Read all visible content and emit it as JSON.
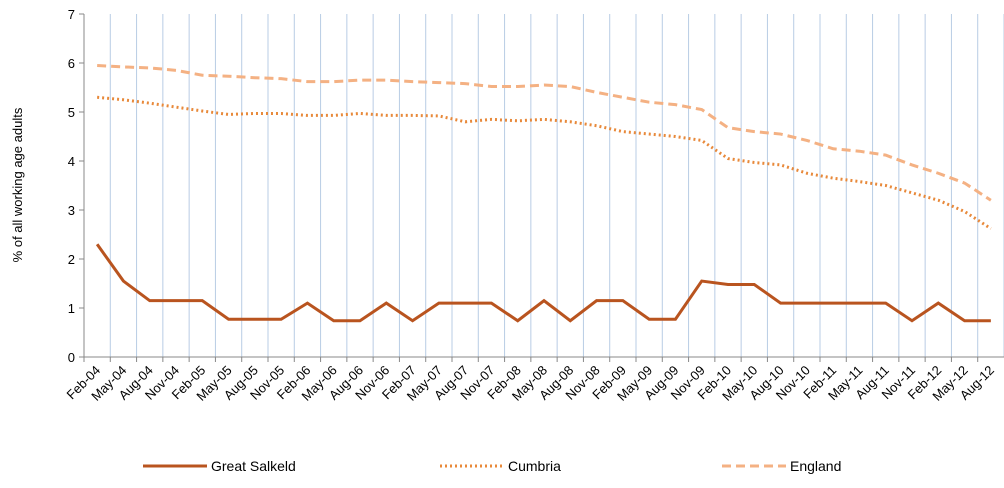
{
  "chart_data": {
    "type": "line",
    "y_label": "% of all working age adults",
    "categories": [
      "Feb-04",
      "May-04",
      "Aug-04",
      "Nov-04",
      "Feb-05",
      "May-05",
      "Aug-05",
      "Nov-05",
      "Feb-06",
      "May-06",
      "Aug-06",
      "Nov-06",
      "Feb-07",
      "May-07",
      "Aug-07",
      "Nov-07",
      "Feb-08",
      "May-08",
      "Aug-08",
      "Nov-08",
      "Feb-09",
      "May-09",
      "Aug-09",
      "Nov-09",
      "Feb-10",
      "May-10",
      "Aug-10",
      "Nov-10",
      "Feb-11",
      "May-11",
      "Aug-11",
      "Nov-11",
      "Feb-12",
      "May-12",
      "Aug-12"
    ],
    "series": [
      {
        "name": "Great Salkeld",
        "color": "#b9541f",
        "dash": "solid",
        "values": [
          2.3,
          1.55,
          1.15,
          1.15,
          1.15,
          0.77,
          0.77,
          0.77,
          1.1,
          0.74,
          0.74,
          1.1,
          0.74,
          1.1,
          1.1,
          1.1,
          0.74,
          1.15,
          0.74,
          1.15,
          1.15,
          0.77,
          0.77,
          1.55,
          1.48,
          1.48,
          1.1,
          1.1,
          1.1,
          1.1,
          1.1,
          0.74,
          1.1,
          0.74,
          0.74
        ]
      },
      {
        "name": "Cumbria",
        "color": "#e8893a",
        "dash": "dotted",
        "values": [
          5.3,
          5.25,
          5.18,
          5.1,
          5.02,
          4.95,
          4.97,
          4.97,
          4.93,
          4.93,
          4.97,
          4.93,
          4.93,
          4.92,
          4.8,
          4.85,
          4.82,
          4.85,
          4.8,
          4.72,
          4.6,
          4.55,
          4.5,
          4.42,
          4.05,
          3.97,
          3.92,
          3.75,
          3.65,
          3.58,
          3.5,
          3.35,
          3.2,
          2.97,
          2.62
        ]
      },
      {
        "name": "England",
        "color": "#f4b183",
        "dash": "dashed",
        "values": [
          5.95,
          5.92,
          5.9,
          5.85,
          5.75,
          5.73,
          5.7,
          5.68,
          5.62,
          5.62,
          5.65,
          5.65,
          5.62,
          5.6,
          5.58,
          5.52,
          5.52,
          5.55,
          5.52,
          5.4,
          5.3,
          5.2,
          5.15,
          5.05,
          4.68,
          4.6,
          4.55,
          4.42,
          4.25,
          4.2,
          4.12,
          3.92,
          3.75,
          3.55,
          3.2
        ]
      }
    ],
    "ylim": [
      0,
      7
    ],
    "yticks": [
      0,
      1,
      2,
      3,
      4,
      5,
      6,
      7
    ],
    "grid": true,
    "legend": "bottom"
  }
}
